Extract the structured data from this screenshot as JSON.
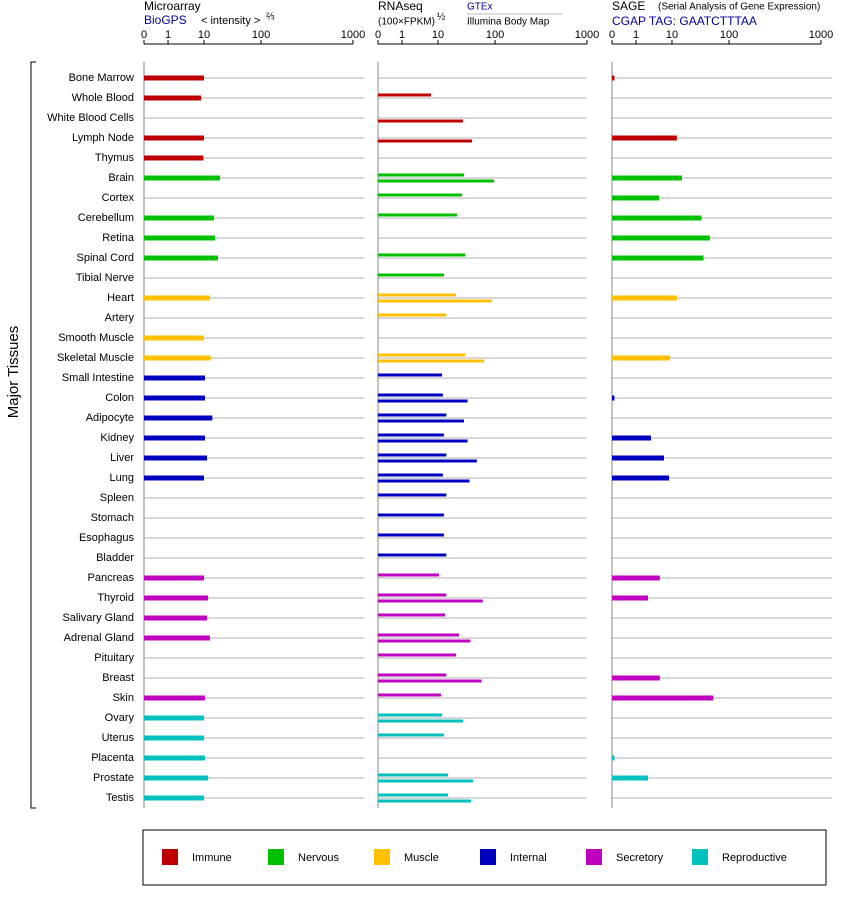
{
  "chart_data": {
    "type": "bar",
    "y_label": "Major Tissues",
    "categories": [
      "Bone Marrow",
      "Whole Blood",
      "White Blood Cells",
      "Lymph Node",
      "Thymus",
      "Brain",
      "Cortex",
      "Cerebellum",
      "Retina",
      "Spinal Cord",
      "Tibial Nerve",
      "Heart",
      "Artery",
      "Smooth Muscle",
      "Skeletal Muscle",
      "Small Intestine",
      "Colon",
      "Adipocyte",
      "Kidney",
      "Liver",
      "Lung",
      "Spleen",
      "Stomach",
      "Esophagus",
      "Bladder",
      "Pancreas",
      "Thyroid",
      "Salivary Gland",
      "Adrenal Gland",
      "Pituitary",
      "Breast",
      "Skin",
      "Ovary",
      "Uterus",
      "Placenta",
      "Prostate",
      "Testis"
    ],
    "category_groups": [
      "Immune",
      "Immune",
      "Immune",
      "Immune",
      "Immune",
      "Nervous",
      "Nervous",
      "Nervous",
      "Nervous",
      "Nervous",
      "Nervous",
      "Muscle",
      "Muscle",
      "Muscle",
      "Muscle",
      "Internal",
      "Internal",
      "Internal",
      "Internal",
      "Internal",
      "Internal",
      "Internal",
      "Internal",
      "Internal",
      "Internal",
      "Secretory",
      "Secretory",
      "Secretory",
      "Secretory",
      "Secretory",
      "Secretory",
      "Secretory",
      "Reproductive",
      "Reproductive",
      "Reproductive",
      "Reproductive",
      "Reproductive"
    ],
    "groups": [
      {
        "name": "Immune",
        "color": "#c00000"
      },
      {
        "name": "Nervous",
        "color": "#00c000"
      },
      {
        "name": "Muscle",
        "color": "#ffc000"
      },
      {
        "name": "Internal",
        "color": "#0000c0"
      },
      {
        "name": "Secretory",
        "color": "#c000c0"
      },
      {
        "name": "Reproductive",
        "color": "#00c0c0"
      }
    ],
    "panels": [
      {
        "title": "Microarray",
        "measure": "< intensity >",
        "exponent": "⅔",
        "xlim": [
          0,
          1000
        ],
        "xticks": [
          0,
          1,
          10,
          100,
          1000
        ],
        "series": [
          {
            "name": "BioGPS",
            "values": [
              10,
              8.3,
              null,
              10,
              9.6,
              19.1,
              null,
              15,
              15.6,
              17.6,
              null,
              12.7,
              null,
              10,
              13.1,
              10.4,
              10.4,
              14,
              10.4,
              11.3,
              10,
              null,
              null,
              null,
              null,
              10,
              11.8,
              11.3,
              12.7,
              null,
              null,
              10.4,
              10,
              10,
              10.4,
              11.8,
              10
            ]
          }
        ]
      },
      {
        "title": "RNAseq",
        "measure": "(100×FPKM)",
        "exponent": "½",
        "xlim": [
          0,
          1000
        ],
        "xticks": [
          0,
          1,
          10,
          100,
          1000
        ],
        "series": [
          {
            "name": "GTEx",
            "values": [
              null,
              6.4,
              null,
              null,
              null,
              28.6,
              26.3,
              21.5,
              null,
              30,
              12.7,
              20.7,
              14,
              null,
              30,
              11.8,
              12.2,
              14,
              12.7,
              14,
              12.2,
              14,
              12.7,
              12.7,
              14,
              10.4,
              14,
              13.3,
              23.3,
              20.7,
              14,
              11.3,
              11.8,
              12.7,
              null,
              15,
              15
            ]
          },
          {
            "name": "Illumina Body Map",
            "values": [
              null,
              null,
              27.4,
              39.5,
              null,
              96,
              null,
              null,
              null,
              null,
              null,
              88,
              null,
              null,
              64,
              null,
              33,
              28.6,
              33,
              48,
              35.7,
              null,
              null,
              null,
              null,
              null,
              61,
              null,
              37,
              null,
              58,
              null,
              27.4,
              null,
              null,
              41,
              38
            ]
          }
        ]
      },
      {
        "title": "SAGE",
        "measure": "(Serial Analysis of Gene Expression)",
        "xlim": [
          0,
          1000
        ],
        "xticks": [
          0,
          1,
          10,
          100,
          1000
        ],
        "series": [
          {
            "name": "CGAP TAG: GAATCTTTAA",
            "values": [
              0.1,
              null,
              null,
              12.2,
              null,
              15,
              4.4,
              33,
              46,
              35.7,
              null,
              12.2,
              null,
              null,
              8.8,
              null,
              0.1,
              null,
              2.6,
              6,
              8.3,
              null,
              null,
              null,
              null,
              4.6,
              2.15,
              null,
              null,
              null,
              4.6,
              53,
              null,
              null,
              0.1,
              2.15,
              null
            ]
          }
        ]
      }
    ]
  }
}
